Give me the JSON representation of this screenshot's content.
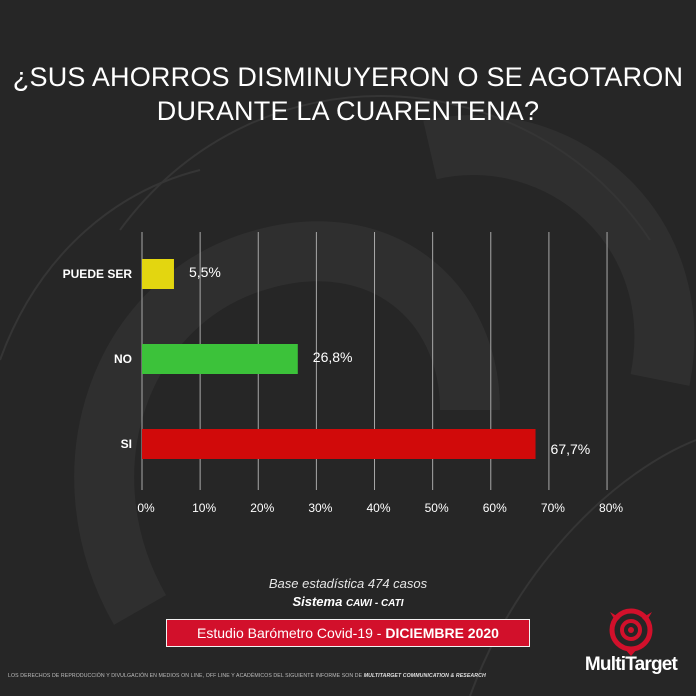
{
  "title": {
    "line1": "¿SUS AHORROS DISMINUYERON O SE AGOTARON",
    "line2": "DURANTE LA CUARENTENA?"
  },
  "chart_data": {
    "type": "bar",
    "orientation": "horizontal",
    "categories": [
      "PUEDE SER",
      "NO",
      "SI"
    ],
    "values": [
      5.5,
      26.8,
      67.7
    ],
    "value_labels": [
      "5,5%",
      "26,8%",
      "67,7%"
    ],
    "colors": [
      "#e3d610",
      "#3cc23a",
      "#d10a0a"
    ],
    "xlim": [
      0,
      80
    ],
    "xticks": [
      0,
      10,
      20,
      30,
      40,
      50,
      60,
      70,
      80
    ],
    "xtick_labels": [
      "0%",
      "10%",
      "20%",
      "30%",
      "40%",
      "50%",
      "60%",
      "70%",
      "80%"
    ],
    "grid": true
  },
  "footer": {
    "base": "Base estadística 474 casos",
    "sistema": "Sistema",
    "sistema_detail": "CAWI - CATI",
    "study": "Estudio Barómetro Covid-19 - ",
    "study_date": "DICIEMBRE 2020",
    "copyright": "LOS DERECHOS DE REPRODUCCIÓN Y DIVULGACIÓN EN MEDIOS ON LINE, OFF LINE Y ACADÉMICOS DEL SIGUIENTE INFORME SON DE ",
    "copyright_owner": "MULTITARGET COMMUNICATION & RESEARCH",
    "brand": "MultiTarget"
  },
  "colors": {
    "background": "#262626",
    "brand_red": "#d2102b"
  }
}
